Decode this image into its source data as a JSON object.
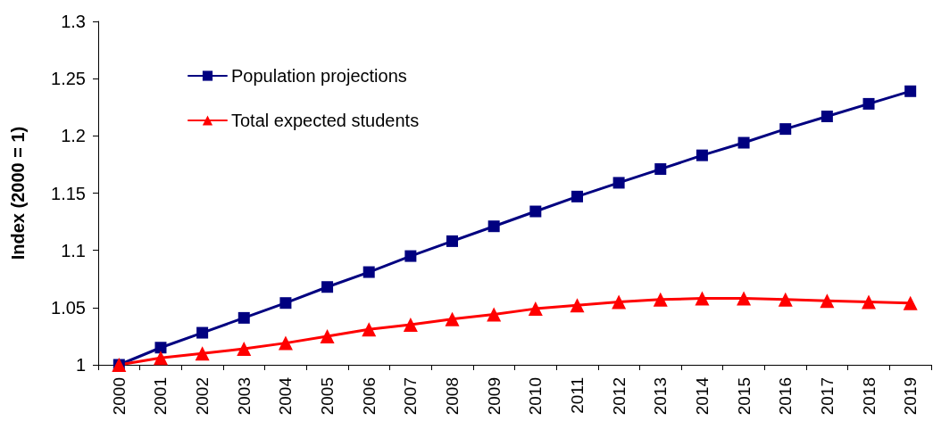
{
  "chart_data": {
    "type": "line",
    "ylabel": "Index (2000 = 1)",
    "categories": [
      "2000",
      "2001",
      "2002",
      "2003",
      "2004",
      "2005",
      "2006",
      "2007",
      "2008",
      "2009",
      "2010",
      "2011",
      "2012",
      "2013",
      "2014",
      "2015",
      "2016",
      "2017",
      "2018",
      "2019"
    ],
    "series": [
      {
        "name": "Population projections",
        "color": "#000080",
        "marker": "square",
        "values": [
          1.0,
          1.015,
          1.028,
          1.041,
          1.054,
          1.068,
          1.081,
          1.095,
          1.108,
          1.121,
          1.134,
          1.147,
          1.159,
          1.171,
          1.183,
          1.194,
          1.206,
          1.217,
          1.228,
          1.239
        ]
      },
      {
        "name": "Total expected students",
        "color": "#ff0000",
        "marker": "triangle",
        "values": [
          1.0,
          1.006,
          1.01,
          1.014,
          1.019,
          1.025,
          1.031,
          1.035,
          1.04,
          1.044,
          1.049,
          1.052,
          1.055,
          1.057,
          1.058,
          1.058,
          1.057,
          1.056,
          1.055,
          1.054
        ]
      }
    ],
    "ylim": [
      1,
      1.3
    ],
    "yticks": [
      1,
      1.05,
      1.1,
      1.15,
      1.2,
      1.25,
      1.3
    ],
    "legend": "top left",
    "line_style": "solid"
  }
}
